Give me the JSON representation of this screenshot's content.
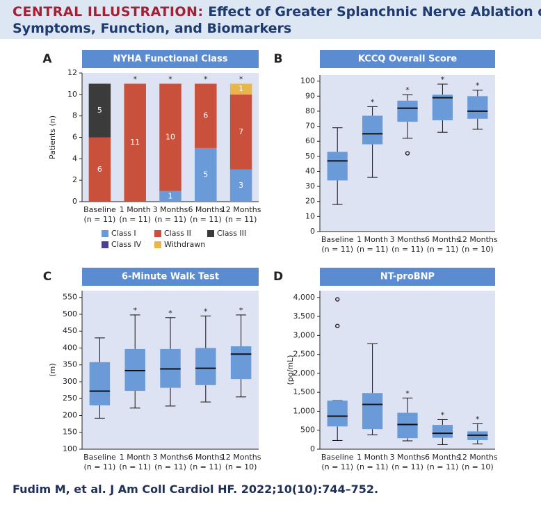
{
  "header": {
    "label": "CENTRAL ILLUSTRATION:",
    "title_line1": "Effect of Greater Splanchnic Nerve Ablation on",
    "title_line2": "Symptoms, Function, and Biomarkers"
  },
  "citation": "Fudim M, et al. J Am Coll Cardiol HF. 2022;10(10):744–752.",
  "chart_data": [
    {
      "type": "stacked_bar",
      "panel": "A",
      "title": "NYHA Functional Class",
      "y_label": "Patients (n)",
      "categories": [
        "Baseline",
        "1 Month",
        "3 Months",
        "6 Months",
        "12 Months"
      ],
      "category_notes": [
        "(n = 11)",
        "(n = 11)",
        "(n = 11)",
        "(n = 11)",
        "(n = 11)"
      ],
      "significance": [
        null,
        "*",
        "*",
        "*",
        "*"
      ],
      "ylim": [
        0,
        12
      ],
      "yticks": [
        0,
        2,
        4,
        6,
        8,
        10,
        12
      ],
      "series": [
        {
          "name": "Class I",
          "color": "#6a9ad8",
          "values": [
            0,
            0,
            1,
            5,
            3
          ]
        },
        {
          "name": "Class II",
          "color": "#c9503a",
          "values": [
            6,
            11,
            10,
            6,
            7
          ]
        },
        {
          "name": "Class III",
          "color": "#3b3b3b",
          "values": [
            5,
            0,
            0,
            0,
            0
          ]
        },
        {
          "name": "Class IV",
          "color": "#4b3f8f",
          "values": [
            0,
            0,
            0,
            0,
            0
          ]
        },
        {
          "name": "Withdrawn",
          "color": "#e8b64a",
          "values": [
            0,
            0,
            0,
            0,
            1
          ]
        }
      ]
    },
    {
      "type": "box",
      "panel": "B",
      "title": "KCCQ Overall Score",
      "color": "#6a9ad8",
      "categories": [
        "Baseline",
        "1 Month",
        "3 Months",
        "6 Months",
        "12 Months"
      ],
      "category_notes": [
        "(n = 11)",
        "(n = 11)",
        "(n = 11)",
        "(n = 11)",
        "(n = 10)"
      ],
      "significance": [
        null,
        "*",
        "*",
        "*",
        "*"
      ],
      "ylim": [
        0,
        104
      ],
      "yticks": [
        0,
        10,
        20,
        30,
        40,
        50,
        60,
        70,
        80,
        90,
        100
      ],
      "boxes": [
        {
          "low": 18,
          "q1": 34,
          "median": 47,
          "q3": 53,
          "high": 69,
          "outliers": []
        },
        {
          "low": 36,
          "q1": 58,
          "median": 65,
          "q3": 77,
          "high": 83,
          "outliers": []
        },
        {
          "low": 62,
          "q1": 73,
          "median": 82,
          "q3": 87,
          "high": 91,
          "outliers": [
            52
          ]
        },
        {
          "low": 66,
          "q1": 74,
          "median": 89,
          "q3": 91,
          "high": 98,
          "outliers": []
        },
        {
          "low": 68,
          "q1": 75,
          "median": 80,
          "q3": 90,
          "high": 94,
          "outliers": []
        }
      ]
    },
    {
      "type": "box",
      "panel": "C",
      "title": "6-Minute Walk Test",
      "y_label": "(m)",
      "color": "#6a9ad8",
      "categories": [
        "Baseline",
        "1 Month",
        "3 Months",
        "6 Months",
        "12 Months"
      ],
      "category_notes": [
        "(n = 11)",
        "(n = 11)",
        "(n = 11)",
        "(n = 11)",
        "(n = 10)"
      ],
      "significance": [
        null,
        "*",
        "*",
        "*",
        "*"
      ],
      "ylim": [
        100,
        570
      ],
      "yticks": [
        100,
        150,
        200,
        250,
        300,
        350,
        400,
        450,
        500,
        550
      ],
      "boxes": [
        {
          "low": 192,
          "q1": 230,
          "median": 272,
          "q3": 358,
          "high": 430,
          "outliers": []
        },
        {
          "low": 222,
          "q1": 273,
          "median": 333,
          "q3": 397,
          "high": 498,
          "outliers": []
        },
        {
          "low": 228,
          "q1": 282,
          "median": 338,
          "q3": 397,
          "high": 490,
          "outliers": []
        },
        {
          "low": 240,
          "q1": 290,
          "median": 340,
          "q3": 400,
          "high": 495,
          "outliers": []
        },
        {
          "low": 255,
          "q1": 308,
          "median": 382,
          "q3": 405,
          "high": 498,
          "outliers": []
        }
      ]
    },
    {
      "type": "box",
      "panel": "D",
      "title": "NT-proBNP",
      "y_label": "(pg/mL)",
      "color": "#6a9ad8",
      "categories": [
        "Baseline",
        "1 Month",
        "3 Months",
        "6 Months",
        "12 Months"
      ],
      "category_notes": [
        "(n = 11)",
        "(n = 11)",
        "(n = 11)",
        "(n = 11)",
        "(n = 10)"
      ],
      "significance": [
        null,
        null,
        "*",
        "*",
        "*"
      ],
      "ylim": [
        0,
        4180
      ],
      "yticks": [
        0,
        500,
        {
          "value": 1000,
          "label": "1,000"
        },
        {
          "value": 1500,
          "label": "1,500"
        },
        {
          "value": 2000,
          "label": "2,000"
        },
        {
          "value": 2500,
          "label": "2,500"
        },
        {
          "value": 3000,
          "label": "3,000"
        },
        {
          "value": 3500,
          "label": "3,500"
        },
        {
          "value": 4000,
          "label": "4,000"
        }
      ],
      "boxes": [
        {
          "low": 230,
          "q1": 600,
          "median": 870,
          "q3": 1280,
          "high": 1280,
          "outliers": [
            3250,
            3950
          ]
        },
        {
          "low": 380,
          "q1": 530,
          "median": 1180,
          "q3": 1480,
          "high": 2780,
          "outliers": []
        },
        {
          "low": 220,
          "q1": 290,
          "median": 650,
          "q3": 960,
          "high": 1350,
          "outliers": []
        },
        {
          "low": 120,
          "q1": 300,
          "median": 420,
          "q3": 640,
          "high": 780,
          "outliers": []
        },
        {
          "low": 140,
          "q1": 240,
          "median": 370,
          "q3": 470,
          "high": 670,
          "outliers": []
        }
      ]
    }
  ]
}
